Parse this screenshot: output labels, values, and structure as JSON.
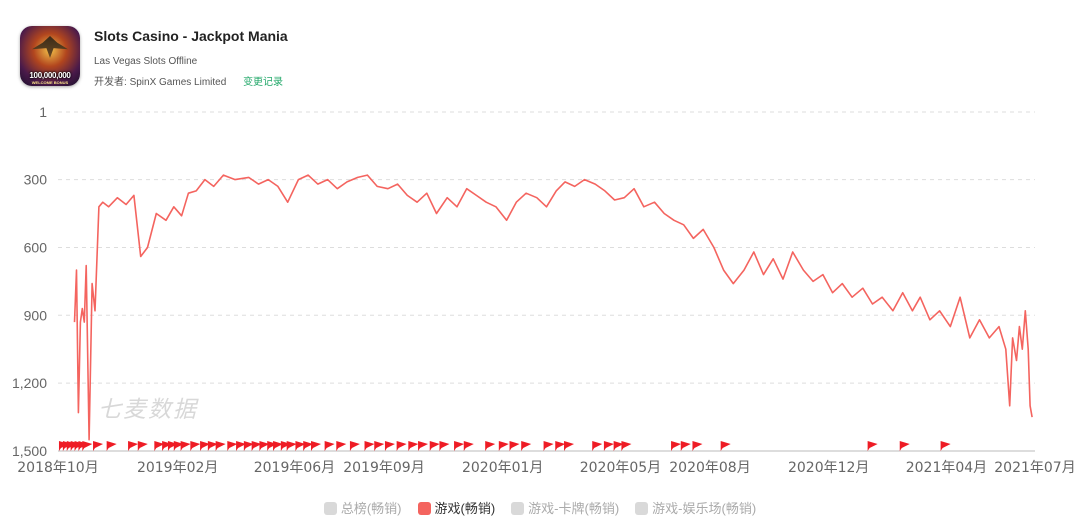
{
  "app": {
    "title": "Slots Casino - Jackpot Mania",
    "subtitle": "Las Vegas Slots Offline",
    "developer_label": "开发者:",
    "developer": "SpinX Games Limited",
    "changelog_label": "变更记录",
    "icon_text": "100,000,000",
    "icon_subtext": "WELCOME BONUS"
  },
  "watermark": "七麦数据",
  "chart_data": {
    "type": "line",
    "title": "",
    "xlabel": "",
    "ylabel": "",
    "y_inverted": true,
    "ylim": [
      1,
      1500
    ],
    "y_ticks": [
      {
        "value": 1,
        "label": "1"
      },
      {
        "value": 300,
        "label": "300"
      },
      {
        "value": 600,
        "label": "600"
      },
      {
        "value": 900,
        "label": "900"
      },
      {
        "value": 1200,
        "label": "1,200"
      },
      {
        "value": 1500,
        "label": "1,500"
      }
    ],
    "xlim": [
      "2018-10-01",
      "2021-07-01"
    ],
    "x_ticks": [
      {
        "date": "2018-10-01",
        "label": "2018年10月"
      },
      {
        "date": "2019-02-01",
        "label": "2019年02月"
      },
      {
        "date": "2019-06-01",
        "label": "2019年06月"
      },
      {
        "date": "2019-09-01",
        "label": "2019年09月"
      },
      {
        "date": "2020-01-01",
        "label": "2020年01月"
      },
      {
        "date": "2020-05-01",
        "label": "2020年05月"
      },
      {
        "date": "2020-08-01",
        "label": "2020年08月"
      },
      {
        "date": "2020-12-01",
        "label": "2020年12月"
      },
      {
        "date": "2021-04-01",
        "label": "2021年04月"
      },
      {
        "date": "2021-07-01",
        "label": "2021年07月"
      }
    ],
    "grid": "horizontal-dashed",
    "legend_position": "bottom",
    "series": [
      {
        "name": "游戏(畅销)",
        "color": "#f4645f",
        "points": [
          [
            "2018-10-18",
            930
          ],
          [
            "2018-10-20",
            700
          ],
          [
            "2018-10-22",
            1330
          ],
          [
            "2018-10-24",
            930
          ],
          [
            "2018-10-26",
            870
          ],
          [
            "2018-10-28",
            930
          ],
          [
            "2018-10-30",
            680
          ],
          [
            "2018-11-02",
            1450
          ],
          [
            "2018-11-05",
            760
          ],
          [
            "2018-11-08",
            880
          ],
          [
            "2018-11-12",
            420
          ],
          [
            "2018-11-16",
            400
          ],
          [
            "2018-11-22",
            420
          ],
          [
            "2018-12-01",
            380
          ],
          [
            "2018-12-10",
            410
          ],
          [
            "2018-12-18",
            370
          ],
          [
            "2018-12-25",
            640
          ],
          [
            "2019-01-01",
            600
          ],
          [
            "2019-01-10",
            450
          ],
          [
            "2019-01-20",
            480
          ],
          [
            "2019-01-28",
            420
          ],
          [
            "2019-02-05",
            460
          ],
          [
            "2019-02-12",
            360
          ],
          [
            "2019-02-20",
            350
          ],
          [
            "2019-03-01",
            300
          ],
          [
            "2019-03-10",
            330
          ],
          [
            "2019-03-20",
            280
          ],
          [
            "2019-04-01",
            300
          ],
          [
            "2019-04-15",
            290
          ],
          [
            "2019-04-25",
            320
          ],
          [
            "2019-05-05",
            300
          ],
          [
            "2019-05-15",
            330
          ],
          [
            "2019-05-25",
            400
          ],
          [
            "2019-06-05",
            300
          ],
          [
            "2019-06-15",
            280
          ],
          [
            "2019-06-25",
            320
          ],
          [
            "2019-07-05",
            300
          ],
          [
            "2019-07-15",
            340
          ],
          [
            "2019-07-25",
            310
          ],
          [
            "2019-08-05",
            290
          ],
          [
            "2019-08-15",
            280
          ],
          [
            "2019-08-25",
            330
          ],
          [
            "2019-09-05",
            340
          ],
          [
            "2019-09-15",
            320
          ],
          [
            "2019-09-25",
            370
          ],
          [
            "2019-10-05",
            400
          ],
          [
            "2019-10-15",
            360
          ],
          [
            "2019-10-25",
            450
          ],
          [
            "2019-11-05",
            380
          ],
          [
            "2019-11-15",
            420
          ],
          [
            "2019-11-25",
            340
          ],
          [
            "2019-12-05",
            370
          ],
          [
            "2019-12-15",
            400
          ],
          [
            "2019-12-25",
            420
          ],
          [
            "2020-01-05",
            480
          ],
          [
            "2020-01-15",
            400
          ],
          [
            "2020-01-25",
            360
          ],
          [
            "2020-02-05",
            380
          ],
          [
            "2020-02-15",
            420
          ],
          [
            "2020-02-25",
            350
          ],
          [
            "2020-03-05",
            310
          ],
          [
            "2020-03-15",
            330
          ],
          [
            "2020-03-25",
            300
          ],
          [
            "2020-04-05",
            320
          ],
          [
            "2020-04-15",
            350
          ],
          [
            "2020-04-25",
            390
          ],
          [
            "2020-05-05",
            380
          ],
          [
            "2020-05-15",
            340
          ],
          [
            "2020-05-25",
            420
          ],
          [
            "2020-06-05",
            400
          ],
          [
            "2020-06-15",
            450
          ],
          [
            "2020-06-25",
            480
          ],
          [
            "2020-07-05",
            500
          ],
          [
            "2020-07-15",
            560
          ],
          [
            "2020-07-25",
            520
          ],
          [
            "2020-08-05",
            600
          ],
          [
            "2020-08-15",
            700
          ],
          [
            "2020-08-25",
            760
          ],
          [
            "2020-09-05",
            700
          ],
          [
            "2020-09-15",
            620
          ],
          [
            "2020-09-25",
            720
          ],
          [
            "2020-10-05",
            650
          ],
          [
            "2020-10-15",
            740
          ],
          [
            "2020-10-25",
            620
          ],
          [
            "2020-11-05",
            700
          ],
          [
            "2020-11-15",
            750
          ],
          [
            "2020-11-25",
            720
          ],
          [
            "2020-12-05",
            800
          ],
          [
            "2020-12-15",
            760
          ],
          [
            "2020-12-25",
            820
          ],
          [
            "2021-01-05",
            780
          ],
          [
            "2021-01-15",
            850
          ],
          [
            "2021-01-25",
            820
          ],
          [
            "2021-02-05",
            880
          ],
          [
            "2021-02-15",
            800
          ],
          [
            "2021-02-25",
            880
          ],
          [
            "2021-03-05",
            820
          ],
          [
            "2021-03-15",
            920
          ],
          [
            "2021-03-25",
            880
          ],
          [
            "2021-04-05",
            950
          ],
          [
            "2021-04-15",
            820
          ],
          [
            "2021-04-25",
            1000
          ],
          [
            "2021-05-05",
            920
          ],
          [
            "2021-05-15",
            1000
          ],
          [
            "2021-05-25",
            950
          ],
          [
            "2021-06-01",
            1050
          ],
          [
            "2021-06-05",
            1300
          ],
          [
            "2021-06-08",
            1000
          ],
          [
            "2021-06-12",
            1100
          ],
          [
            "2021-06-15",
            950
          ],
          [
            "2021-06-18",
            1050
          ],
          [
            "2021-06-21",
            880
          ],
          [
            "2021-06-24",
            1050
          ],
          [
            "2021-06-26",
            1300
          ],
          [
            "2021-06-28",
            1350
          ]
        ]
      }
    ],
    "flags": [
      "2018-10-02",
      "2018-10-06",
      "2018-10-10",
      "2018-10-14",
      "2018-10-18",
      "2018-10-22",
      "2018-10-26",
      "2018-11-06",
      "2018-11-20",
      "2018-12-12",
      "2018-12-22",
      "2019-01-08",
      "2019-01-16",
      "2019-01-22",
      "2019-01-28",
      "2019-02-04",
      "2019-02-14",
      "2019-02-24",
      "2019-03-04",
      "2019-03-12",
      "2019-03-24",
      "2019-04-02",
      "2019-04-10",
      "2019-04-18",
      "2019-04-26",
      "2019-05-04",
      "2019-05-10",
      "2019-05-18",
      "2019-05-24",
      "2019-06-02",
      "2019-06-10",
      "2019-06-18",
      "2019-07-02",
      "2019-07-14",
      "2019-07-28",
      "2019-08-12",
      "2019-08-22",
      "2019-09-02",
      "2019-09-14",
      "2019-09-26",
      "2019-10-06",
      "2019-10-18",
      "2019-10-28",
      "2019-11-12",
      "2019-11-22",
      "2019-12-14",
      "2019-12-28",
      "2020-01-08",
      "2020-01-20",
      "2020-02-12",
      "2020-02-24",
      "2020-03-04",
      "2020-04-02",
      "2020-04-14",
      "2020-04-24",
      "2020-05-02",
      "2020-06-22",
      "2020-07-02",
      "2020-07-14",
      "2020-08-12",
      "2021-01-10",
      "2021-02-12",
      "2021-03-26"
    ]
  },
  "legend": [
    {
      "label": "总榜(畅销)",
      "color": "#d9d9d9",
      "active": false
    },
    {
      "label": "游戏(畅销)",
      "color": "#f4645f",
      "active": true
    },
    {
      "label": "游戏-卡牌(畅销)",
      "color": "#d9d9d9",
      "active": false
    },
    {
      "label": "游戏-娱乐场(畅销)",
      "color": "#d9d9d9",
      "active": false
    }
  ]
}
